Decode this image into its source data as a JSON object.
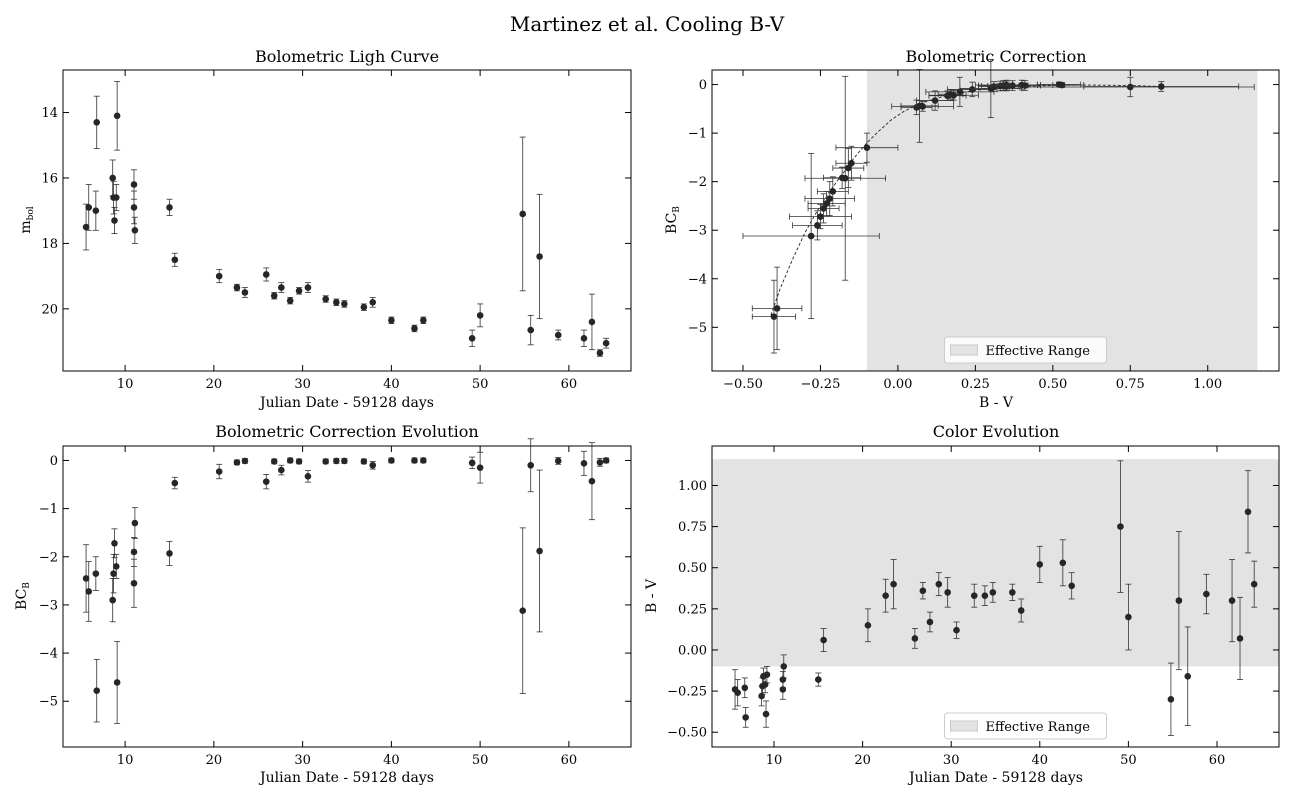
{
  "figure": {
    "suptitle": "Martinez et al. Cooling B-V"
  },
  "chart_data": [
    {
      "id": "lc",
      "type": "scatter",
      "title": "Bolometric Ligh Curve",
      "xlabel": "Julian Date - 59128 days",
      "ylabel": "m_bol",
      "xlim": [
        3,
        67
      ],
      "ylim": [
        21.9,
        12.7
      ],
      "y_inverted": true,
      "xticks": [
        10,
        20,
        30,
        40,
        50,
        60
      ],
      "yticks": [
        14,
        16,
        18,
        20
      ],
      "grid": false,
      "series": [
        {
          "marker_color": "#262626",
          "x": [
            5.6,
            5.9,
            6.7,
            6.8,
            8.6,
            8.7,
            8.8,
            9.0,
            9.1,
            11.0,
            11.0,
            11.1,
            15.0,
            15.6,
            20.6,
            22.6,
            23.5,
            25.9,
            26.8,
            27.6,
            28.6,
            29.6,
            30.6,
            32.6,
            33.8,
            34.7,
            36.9,
            37.9,
            40.0,
            42.6,
            43.6,
            49.1,
            50.0,
            54.8,
            55.7,
            56.7,
            58.8,
            61.7,
            62.6,
            63.5,
            64.2
          ],
          "y": [
            17.5,
            16.9,
            17.0,
            14.3,
            16.0,
            16.6,
            17.3,
            16.6,
            14.1,
            16.2,
            16.9,
            17.6,
            16.9,
            18.5,
            19.0,
            19.35,
            19.5,
            18.95,
            19.6,
            19.35,
            19.75,
            19.45,
            19.35,
            19.7,
            19.8,
            19.85,
            19.95,
            19.8,
            20.35,
            20.6,
            20.35,
            20.9,
            20.2,
            17.1,
            20.65,
            18.4,
            20.8,
            20.9,
            20.4,
            21.35,
            21.05
          ],
          "yerr": [
            0.7,
            0.7,
            0.6,
            0.8,
            0.55,
            0.5,
            0.4,
            0.4,
            1.05,
            0.45,
            0.5,
            0.4,
            0.25,
            0.2,
            0.2,
            0.1,
            0.15,
            0.2,
            0.1,
            0.15,
            0.1,
            0.1,
            0.15,
            0.1,
            0.1,
            0.1,
            0.1,
            0.15,
            0.1,
            0.1,
            0.1,
            0.25,
            0.35,
            2.35,
            0.45,
            1.9,
            0.15,
            0.25,
            0.85,
            0.1,
            0.15
          ]
        }
      ]
    },
    {
      "id": "bc",
      "type": "scatter",
      "title": "Bolometric Correction",
      "xlabel": "B - V",
      "ylabel": "BC_B",
      "xlim": [
        -0.6,
        1.23
      ],
      "ylim": [
        -5.9,
        0.3
      ],
      "xticks": [
        -0.5,
        -0.25,
        0.0,
        0.25,
        0.5,
        0.75,
        1.0
      ],
      "xtick_labels": [
        "−0.50",
        "−0.25",
        "0.00",
        "0.25",
        "0.50",
        "0.75",
        "1.00"
      ],
      "yticks": [
        0,
        -1,
        -2,
        -3,
        -4,
        -5
      ],
      "ytick_labels": [
        "0",
        "−1",
        "−2",
        "−3",
        "−4",
        "−5"
      ],
      "grid": false,
      "shaded_range": {
        "xmin": -0.1,
        "xmax": 1.16,
        "color": "#e3e3e3",
        "label": "Effective Range"
      },
      "legend": {
        "location": "lower center",
        "entries": [
          "Effective Range"
        ]
      },
      "curve": {
        "style": "dashed",
        "x": [
          -0.41,
          -0.38,
          -0.34,
          -0.3,
          -0.26,
          -0.22,
          -0.18,
          -0.14,
          -0.1,
          -0.06,
          -0.02,
          0.02,
          0.06,
          0.1,
          0.15,
          0.2,
          0.25,
          0.3,
          0.4,
          0.5,
          0.6,
          0.75,
          0.85
        ],
        "y": [
          -4.75,
          -4.2,
          -3.6,
          -3.05,
          -2.6,
          -2.2,
          -1.85,
          -1.5,
          -1.2,
          -0.95,
          -0.72,
          -0.55,
          -0.42,
          -0.33,
          -0.24,
          -0.17,
          -0.12,
          -0.08,
          -0.04,
          -0.02,
          -0.01,
          -0.02,
          -0.04
        ]
      },
      "series": [
        {
          "marker_color": "#262626",
          "x": [
            -0.4,
            -0.39,
            -0.28,
            -0.26,
            -0.25,
            -0.24,
            -0.23,
            -0.22,
            -0.21,
            -0.18,
            -0.17,
            -0.16,
            -0.15,
            -0.1,
            0.06,
            0.07,
            0.08,
            0.12,
            0.16,
            0.17,
            0.18,
            0.2,
            0.24,
            0.3,
            0.31,
            0.33,
            0.34,
            0.35,
            0.35,
            0.37,
            0.4,
            0.41,
            0.52,
            0.53,
            0.75,
            0.85
          ],
          "y": [
            -4.78,
            -4.61,
            -3.12,
            -2.9,
            -2.72,
            -2.55,
            -2.45,
            -2.35,
            -2.2,
            -1.92,
            -1.93,
            -1.72,
            -1.62,
            -1.3,
            -0.47,
            -0.44,
            -0.45,
            -0.33,
            -0.23,
            -0.2,
            -0.22,
            -0.15,
            -0.1,
            -0.08,
            -0.04,
            -0.03,
            -0.02,
            -0.03,
            -0.01,
            -0.02,
            -0.01,
            -0.02,
            0.0,
            -0.01,
            -0.05,
            -0.04
          ],
          "xerr": [
            0.07,
            0.08,
            0.22,
            0.08,
            0.1,
            0.05,
            0.06,
            0.08,
            0.05,
            0.06,
            0.13,
            0.05,
            0.05,
            0.1,
            0.05,
            0.06,
            0.1,
            0.06,
            0.06,
            0.04,
            0.08,
            0.11,
            0.08,
            0.1,
            0.05,
            0.06,
            0.08,
            0.06,
            0.1,
            0.05,
            0.1,
            0.05,
            0.07,
            0.07,
            0.4,
            0.25
          ],
          "yerr": [
            0.75,
            0.85,
            1.7,
            0.3,
            0.25,
            0.3,
            0.25,
            0.35,
            0.3,
            0.22,
            2.1,
            0.4,
            0.35,
            0.3,
            0.15,
            0.75,
            0.1,
            0.2,
            0.1,
            0.1,
            0.1,
            0.3,
            0.15,
            0.6,
            0.1,
            0.1,
            0.1,
            0.1,
            0.1,
            0.1,
            0.1,
            0.1,
            0.05,
            0.05,
            0.2,
            0.1
          ]
        }
      ]
    },
    {
      "id": "bce",
      "type": "scatter",
      "title": "Bolometric Correction Evolution",
      "xlabel": "Julian Date - 59128 days",
      "ylabel": "BC_B",
      "xlim": [
        3,
        67
      ],
      "ylim": [
        -5.95,
        0.3
      ],
      "xticks": [
        10,
        20,
        30,
        40,
        50,
        60
      ],
      "yticks": [
        0,
        -1,
        -2,
        -3,
        -4,
        -5
      ],
      "ytick_labels": [
        "0",
        "−1",
        "−2",
        "−3",
        "−4",
        "−5"
      ],
      "grid": false,
      "series": [
        {
          "marker_color": "#262626",
          "x": [
            5.6,
            5.9,
            6.7,
            6.8,
            8.6,
            8.7,
            8.8,
            9.0,
            9.1,
            11.0,
            11.0,
            11.1,
            15.0,
            15.6,
            20.6,
            22.6,
            23.5,
            25.9,
            26.8,
            27.6,
            28.6,
            29.6,
            30.6,
            32.6,
            33.8,
            34.7,
            36.9,
            37.9,
            40.0,
            42.6,
            43.6,
            49.1,
            50.0,
            54.8,
            55.7,
            56.7,
            58.8,
            61.7,
            62.6,
            63.5,
            64.2
          ],
          "y": [
            -2.45,
            -2.72,
            -2.35,
            -4.78,
            -2.9,
            -2.35,
            -1.72,
            -2.2,
            -4.61,
            -2.55,
            -1.9,
            -1.3,
            -1.93,
            -0.47,
            -0.23,
            -0.04,
            -0.01,
            -0.44,
            -0.02,
            -0.2,
            0.0,
            -0.02,
            -0.33,
            -0.02,
            -0.01,
            -0.01,
            -0.02,
            -0.1,
            0.0,
            0.0,
            0.0,
            -0.05,
            -0.15,
            -3.12,
            -0.1,
            -1.88,
            -0.01,
            -0.06,
            -0.43,
            -0.04,
            0.0
          ],
          "yerr": [
            0.7,
            0.62,
            0.35,
            0.65,
            0.45,
            0.4,
            0.3,
            0.25,
            0.85,
            0.5,
            0.3,
            0.32,
            0.25,
            0.12,
            0.15,
            0.05,
            0.05,
            0.15,
            0.05,
            0.1,
            0.05,
            0.05,
            0.12,
            0.05,
            0.05,
            0.05,
            0.05,
            0.08,
            0.05,
            0.05,
            0.05,
            0.12,
            0.32,
            1.72,
            0.55,
            1.68,
            0.07,
            0.25,
            0.8,
            0.08,
            0.05
          ]
        }
      ]
    },
    {
      "id": "ce",
      "type": "scatter",
      "title": "Color Evolution",
      "xlabel": "Julian Date - 59128 days",
      "ylabel": "B - V",
      "xlim": [
        3,
        67
      ],
      "ylim": [
        -0.59,
        1.24
      ],
      "xticks": [
        10,
        20,
        30,
        40,
        50,
        60
      ],
      "yticks": [
        -0.5,
        -0.25,
        0.0,
        0.25,
        0.5,
        0.75,
        1.0
      ],
      "ytick_labels": [
        "−0.50",
        "−0.25",
        "0.00",
        "0.25",
        "0.50",
        "0.75",
        "1.00"
      ],
      "grid": false,
      "shaded_range": {
        "ymin": -0.1,
        "ymax": 1.16,
        "color": "#e3e3e3",
        "label": "Effective Range"
      },
      "legend": {
        "location": "lower center",
        "entries": [
          "Effective Range"
        ]
      },
      "series": [
        {
          "marker_color": "#262626",
          "x": [
            5.6,
            5.9,
            6.7,
            6.8,
            8.6,
            8.7,
            8.8,
            9.0,
            9.1,
            9.2,
            11.0,
            11.0,
            11.1,
            15.0,
            15.6,
            20.6,
            22.6,
            23.5,
            25.9,
            26.8,
            27.6,
            28.6,
            29.6,
            30.6,
            32.6,
            33.8,
            34.7,
            36.9,
            37.9,
            40.0,
            42.6,
            43.6,
            49.1,
            50.0,
            54.8,
            55.7,
            56.7,
            58.8,
            61.7,
            62.6,
            63.5,
            64.2
          ],
          "y": [
            -0.24,
            -0.26,
            -0.23,
            -0.41,
            -0.28,
            -0.22,
            -0.16,
            -0.21,
            -0.39,
            -0.15,
            -0.24,
            -0.18,
            -0.1,
            -0.18,
            0.06,
            0.15,
            0.33,
            0.4,
            0.07,
            0.36,
            0.17,
            0.4,
            0.35,
            0.12,
            0.33,
            0.33,
            0.35,
            0.35,
            0.24,
            0.52,
            0.53,
            0.39,
            0.75,
            0.2,
            -0.3,
            0.3,
            -0.16,
            0.34,
            0.3,
            0.07,
            0.84,
            0.4
          ],
          "yerr": [
            0.12,
            0.08,
            0.06,
            0.06,
            0.06,
            0.05,
            0.05,
            0.05,
            0.08,
            0.05,
            0.06,
            0.05,
            0.07,
            0.04,
            0.07,
            0.1,
            0.1,
            0.15,
            0.06,
            0.05,
            0.06,
            0.07,
            0.09,
            0.05,
            0.07,
            0.06,
            0.06,
            0.05,
            0.07,
            0.11,
            0.14,
            0.08,
            0.4,
            0.2,
            0.22,
            0.42,
            0.3,
            0.12,
            0.25,
            0.25,
            0.25,
            0.14
          ]
        }
      ]
    }
  ]
}
